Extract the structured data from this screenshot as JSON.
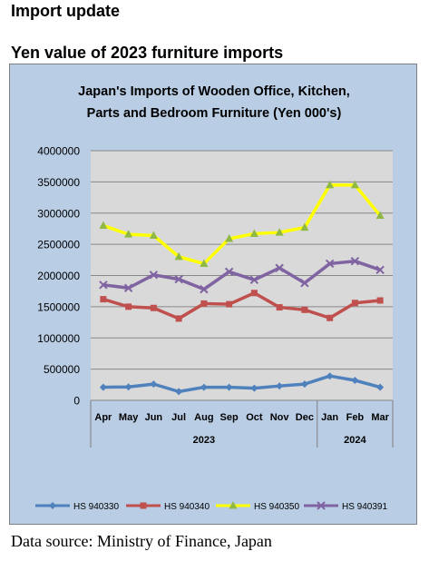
{
  "header": {
    "section_label": "Import update",
    "headline": "Yen value of 2023 furniture imports"
  },
  "footer": {
    "source": "Data source: Ministry of Finance, Japan"
  },
  "chart_data": {
    "type": "line",
    "title_lines": [
      "Japan's Imports of  Wooden  Office, Kitchen,",
      "Parts and Bedroom Furniture (Yen 000's)"
    ],
    "categories": [
      "Apr",
      "May",
      "Jun",
      "Jul",
      "Aug",
      "Sep",
      "Oct",
      "Nov",
      "Dec",
      "Jan",
      "Feb",
      "Mar"
    ],
    "year_groups": [
      {
        "label": "2023",
        "from": 0,
        "to": 8
      },
      {
        "label": "2024",
        "from": 9,
        "to": 11
      }
    ],
    "ylim": [
      0,
      4000000
    ],
    "yticks": [
      0,
      500000,
      1000000,
      1500000,
      2000000,
      2500000,
      3000000,
      3500000,
      4000000
    ],
    "grid": true,
    "legend_position": "bottom",
    "colors": {
      "plot_bg": "#d9d9d9",
      "chart_bg": "#b9cde5",
      "grid": "#888888"
    },
    "series": [
      {
        "name": "HS 940330",
        "color": "#4f81bd",
        "marker": "diamond",
        "values": [
          210000,
          215000,
          260000,
          140000,
          210000,
          210000,
          195000,
          230000,
          260000,
          390000,
          320000,
          210000
        ]
      },
      {
        "name": "HS 940340",
        "color": "#c0504d",
        "marker": "square",
        "values": [
          1620000,
          1500000,
          1480000,
          1310000,
          1550000,
          1540000,
          1720000,
          1490000,
          1450000,
          1320000,
          1560000,
          1600000
        ]
      },
      {
        "name": "HS 940350",
        "color": "#ffff00",
        "marker": "triangle",
        "values": [
          2800000,
          2660000,
          2640000,
          2300000,
          2190000,
          2590000,
          2670000,
          2690000,
          2770000,
          3450000,
          3450000,
          2960000
        ]
      },
      {
        "name": "HS 940391",
        "color": "#8064a2",
        "marker": "x",
        "values": [
          1850000,
          1800000,
          2010000,
          1940000,
          1780000,
          2060000,
          1930000,
          2120000,
          1880000,
          2190000,
          2230000,
          2090000
        ]
      }
    ]
  }
}
